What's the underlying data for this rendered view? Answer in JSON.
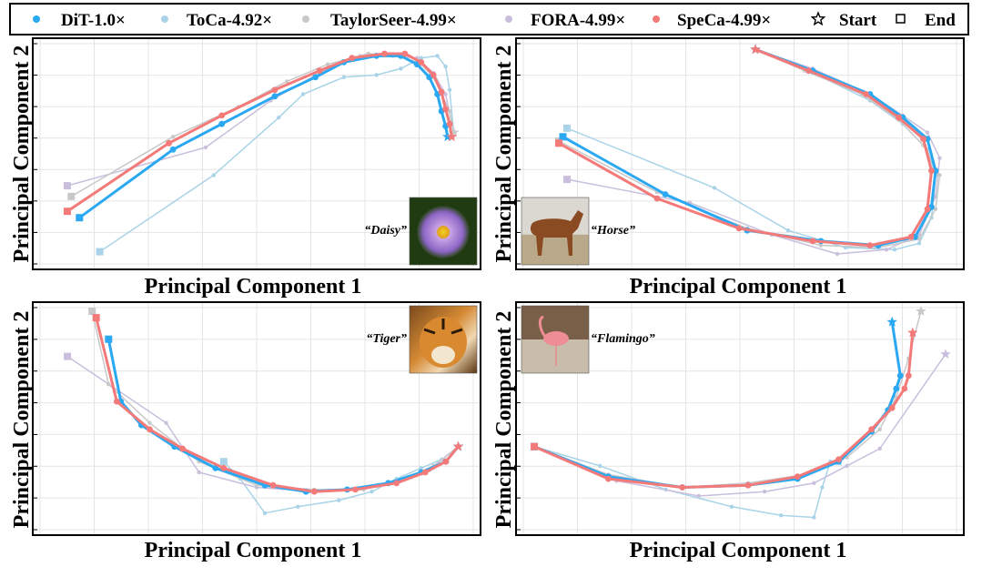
{
  "colors": {
    "dit": "#2aa8f2",
    "toca": "#a8d3e8",
    "taylorseer": "#c8c8c8",
    "fora": "#c9bfdd",
    "speca": "#f47a7a"
  },
  "legend": [
    {
      "key": "dit",
      "label": "DiT-1.0×",
      "marker": "circle"
    },
    {
      "key": "toca",
      "label": "ToCa-4.92×",
      "marker": "circle"
    },
    {
      "key": "taylorseer",
      "label": "TaylorSeer-4.99×",
      "marker": "circle"
    },
    {
      "key": "fora",
      "label": "FORA-4.99×",
      "marker": "circle"
    },
    {
      "key": "speca",
      "label": "SpeCa-4.99×",
      "marker": "circle"
    },
    {
      "key": "start",
      "label": "Start",
      "marker": "star"
    },
    {
      "key": "end",
      "label": "End",
      "marker": "square"
    }
  ],
  "chart_data": [
    {
      "type": "line",
      "name": "daisy",
      "xlabel": "Principal Component 1",
      "ylabel": "Principal Component 2",
      "xlim": [
        0,
        100
      ],
      "ylim": [
        0,
        100
      ],
      "grid": true,
      "annotation": "“Daisy”",
      "image_icon": "daisy-photo",
      "image_position": "bottom-right",
      "series": [
        {
          "key": "toca",
          "x": [
            12,
            40,
            56,
            62,
            72,
            80,
            86,
            91,
            95,
            97,
            98,
            99
          ],
          "y": [
            4,
            40,
            67,
            78,
            86,
            87,
            90,
            95,
            96,
            91,
            80,
            60
          ]
        },
        {
          "key": "fora",
          "x": [
            4,
            38,
            54,
            66,
            76,
            84,
            90,
            94,
            97,
            99
          ],
          "y": [
            35,
            53,
            75,
            88,
            96,
            96,
            95,
            88,
            78,
            60
          ]
        },
        {
          "key": "taylorseer",
          "x": [
            5,
            30,
            46,
            58,
            68,
            78,
            86,
            91,
            94,
            96,
            98,
            99
          ],
          "y": [
            30,
            58,
            72,
            84,
            92,
            97,
            96,
            92,
            86,
            78,
            70,
            60
          ]
        },
        {
          "key": "dit",
          "x": [
            7,
            30,
            42,
            55,
            65,
            72,
            80,
            86,
            90,
            93,
            95,
            96,
            97,
            97.5
          ],
          "y": [
            20,
            52,
            64,
            77,
            86,
            93,
            96,
            96,
            92,
            86,
            78,
            70,
            63,
            58
          ]
        },
        {
          "key": "speca",
          "x": [
            4,
            29,
            42,
            55,
            66,
            74,
            82,
            87,
            91,
            94,
            96,
            97,
            98,
            98.5
          ],
          "y": [
            23,
            55,
            68,
            80,
            89,
            95,
            97,
            97,
            93,
            87,
            79,
            71,
            64,
            58
          ]
        }
      ]
    },
    {
      "type": "line",
      "name": "horse",
      "xlabel": "Principal Component 1",
      "ylabel": "Principal Component 2",
      "xlim": [
        0,
        100
      ],
      "ylim": [
        0,
        100
      ],
      "grid": true,
      "annotation": "“Horse”",
      "image_icon": "horse-photo",
      "image_position": "bottom-left",
      "series": [
        {
          "key": "toca",
          "x": [
            8,
            44,
            62,
            76,
            88,
            94,
            97,
            98,
            96,
            90,
            82,
            68,
            54
          ],
          "y": [
            62,
            34,
            14,
            6,
            5,
            8,
            20,
            40,
            52,
            64,
            75,
            88,
            99
          ]
        },
        {
          "key": "fora",
          "x": [
            8,
            38,
            58,
            74,
            86,
            94,
            98,
            99,
            96,
            90,
            82,
            68,
            54
          ],
          "y": [
            38,
            27,
            12,
            3,
            5,
            12,
            30,
            48,
            60,
            68,
            78,
            90,
            99
          ]
        },
        {
          "key": "taylorseer",
          "x": [
            6,
            30,
            52,
            70,
            84,
            94,
            98,
            99,
            95,
            89,
            80,
            66,
            54
          ],
          "y": [
            56,
            32,
            15,
            7,
            6,
            10,
            24,
            40,
            54,
            66,
            78,
            89,
            99
          ]
        },
        {
          "key": "dit",
          "x": [
            7,
            32,
            52,
            70,
            84,
            93,
            97,
            98,
            96,
            90,
            82,
            68,
            54
          ],
          "y": [
            58,
            31,
            14,
            9,
            7,
            11,
            25,
            42,
            57,
            67,
            78,
            89,
            99
          ]
        },
        {
          "key": "speca",
          "x": [
            6,
            30,
            50,
            68,
            82,
            92,
            96,
            97,
            95,
            89,
            81,
            67,
            54
          ],
          "y": [
            55,
            29,
            15,
            9,
            7,
            11,
            24,
            42,
            57,
            67,
            78,
            89,
            99
          ]
        }
      ]
    },
    {
      "type": "line",
      "name": "tiger",
      "xlabel": "Principal Component 1",
      "ylabel": "Principal Component 2",
      "xlim": [
        0,
        100
      ],
      "ylim": [
        0,
        100
      ],
      "grid": true,
      "annotation": "“Tiger”",
      "image_icon": "tiger-photo",
      "image_position": "top-right",
      "series": [
        {
          "key": "toca",
          "x": [
            42,
            46,
            52,
            60,
            70,
            78,
            84,
            90,
            95,
            99
          ],
          "y": [
            30,
            22,
            6,
            9,
            12,
            16,
            22,
            27,
            31,
            37
          ]
        },
        {
          "key": "fora",
          "x": [
            4,
            28,
            36,
            50,
            64,
            74,
            84,
            92,
            99
          ],
          "y": [
            79,
            48,
            25,
            18,
            16,
            17,
            20,
            26,
            37
          ]
        },
        {
          "key": "taylorseer",
          "x": [
            10,
            14,
            24,
            36,
            50,
            64,
            76,
            86,
            93,
            99
          ],
          "y": [
            100,
            66,
            48,
            30,
            19,
            17,
            17,
            22,
            28,
            37
          ]
        },
        {
          "key": "dit",
          "x": [
            14,
            17,
            22,
            30,
            40,
            52,
            62,
            72,
            82,
            90,
            96,
            99
          ],
          "y": [
            87,
            58,
            47,
            37,
            27,
            19,
            16,
            17,
            20,
            25,
            30,
            37
          ]
        },
        {
          "key": "speca",
          "x": [
            11,
            16,
            24,
            32,
            42,
            54,
            64,
            74,
            84,
            91,
            96,
            99
          ],
          "y": [
            97,
            58,
            45,
            36,
            27,
            19,
            16,
            17,
            20,
            25,
            30,
            37
          ]
        }
      ]
    },
    {
      "type": "line",
      "name": "flamingo",
      "xlabel": "Principal Component 1",
      "ylabel": "Principal Component 2",
      "xlim": [
        0,
        100
      ],
      "ylim": [
        0,
        100
      ],
      "grid": true,
      "annotation": "“Flamingo”",
      "image_icon": "flamingo-photo",
      "image_position": "top-left",
      "series": [
        {
          "key": "toca",
          "x": [
            0,
            16,
            32,
            48,
            60,
            68,
            70,
            72,
            74
          ],
          "y": [
            37,
            28,
            17,
            9,
            5,
            4,
            18,
            30,
            30
          ]
        },
        {
          "key": "fora",
          "x": [
            0,
            20,
            40,
            56,
            68,
            76,
            84,
            100
          ],
          "y": [
            37,
            21,
            14,
            16,
            20,
            28,
            36,
            80
          ]
        },
        {
          "key": "taylorseer",
          "x": [
            0,
            18,
            36,
            52,
            66,
            76,
            84,
            88,
            91,
            94
          ],
          "y": [
            37,
            24,
            18,
            20,
            24,
            32,
            45,
            60,
            78,
            100
          ]
        },
        {
          "key": "dit",
          "x": [
            0,
            18,
            36,
            52,
            64,
            74,
            82,
            86,
            88,
            89,
            87
          ],
          "y": [
            37,
            23,
            18,
            19,
            22,
            30,
            44,
            54,
            64,
            70,
            95
          ]
        },
        {
          "key": "speca",
          "x": [
            0,
            18,
            36,
            52,
            64,
            74,
            82,
            87,
            90,
            91,
            92
          ],
          "y": [
            37,
            22,
            18,
            19,
            23,
            31,
            45,
            55,
            64,
            70,
            90
          ]
        }
      ]
    }
  ]
}
